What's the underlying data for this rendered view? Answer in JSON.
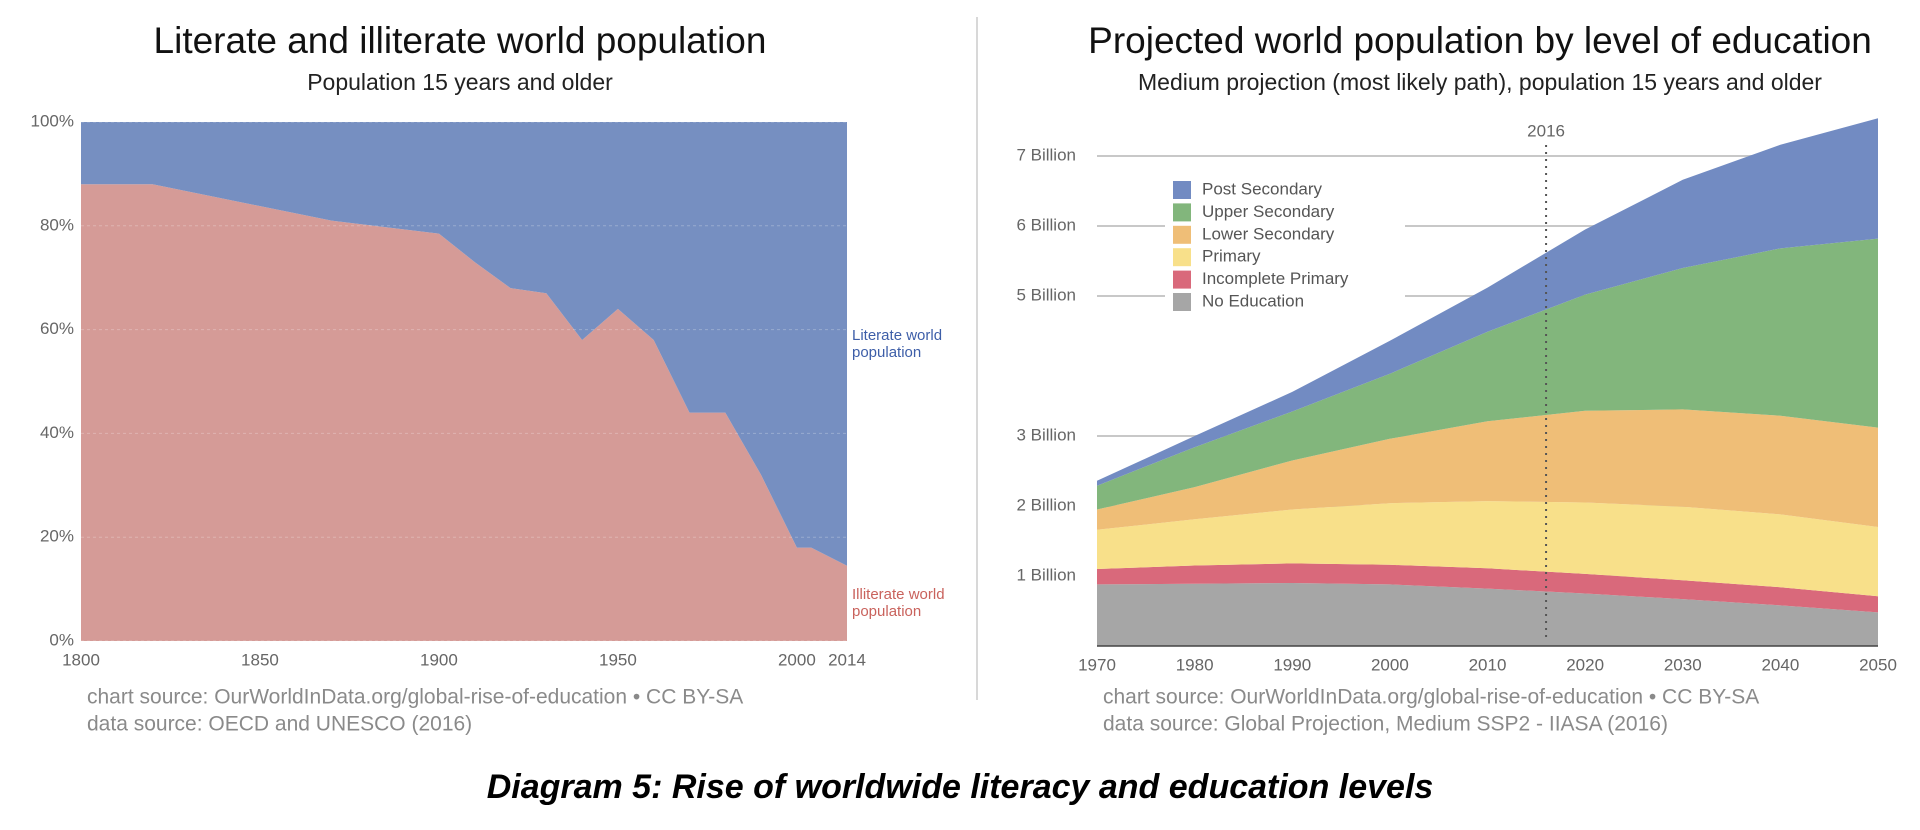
{
  "chart_data": [
    {
      "type": "area",
      "stacked": true,
      "title": "Literate and illiterate world population",
      "subtitle": "Population 15 years and older",
      "x": [
        1800,
        1820,
        1870,
        1900,
        1910,
        1920,
        1930,
        1940,
        1950,
        1960,
        1970,
        1980,
        1990,
        2000,
        2004,
        2014
      ],
      "series": [
        {
          "name": "Illiterate world population",
          "color": "#d59b97",
          "values": [
            88,
            88,
            81,
            78.5,
            73,
            68,
            67,
            58,
            64,
            58,
            44,
            44,
            32,
            18,
            18,
            14.5
          ]
        },
        {
          "name": "Literate world population",
          "color": "#768fc1",
          "values": [
            12,
            12,
            19,
            21.5,
            27,
            32,
            33,
            42,
            36,
            42,
            56,
            56,
            68,
            82,
            82,
            85.5
          ]
        }
      ],
      "xlim": [
        1800,
        2014
      ],
      "xticks": [
        1800,
        1850,
        1900,
        1950,
        2000,
        2014
      ],
      "ylim": [
        0,
        100
      ],
      "yticks": [
        {
          "value": 0,
          "label": "0%"
        },
        {
          "value": 20,
          "label": "20%"
        },
        {
          "value": 40,
          "label": "40%"
        },
        {
          "value": 60,
          "label": "60%"
        },
        {
          "value": 80,
          "label": "80%"
        },
        {
          "value": 100,
          "label": "100%"
        }
      ],
      "grid": true,
      "legend": "series labels right",
      "sources": [
        "chart source: OurWorldInData.org/global-rise-of-education • CC BY-SA",
        "data source: OECD and UNESCO (2016)"
      ]
    },
    {
      "type": "area",
      "stacked": true,
      "title": "Projected world population by level of education",
      "subtitle": "Medium projection (most likely path), population 15 years and older",
      "x": [
        1970,
        1980,
        1990,
        2000,
        2010,
        2020,
        2030,
        2040,
        2050
      ],
      "series": [
        {
          "name": "No Education",
          "color": "#a6a6a6",
          "values": [
            0.88,
            0.89,
            0.9,
            0.88,
            0.82,
            0.75,
            0.67,
            0.58,
            0.48
          ]
        },
        {
          "name": "Incomplete Primary",
          "color": "#d9697b",
          "values": [
            0.22,
            0.26,
            0.28,
            0.28,
            0.29,
            0.28,
            0.27,
            0.26,
            0.23
          ]
        },
        {
          "name": "Primary",
          "color": "#f8e08a",
          "values": [
            0.56,
            0.66,
            0.77,
            0.88,
            0.96,
            1.02,
            1.05,
            1.04,
            0.99
          ]
        },
        {
          "name": "Lower Secondary",
          "color": "#efbe77",
          "values": [
            0.29,
            0.46,
            0.7,
            0.92,
            1.14,
            1.31,
            1.39,
            1.41,
            1.42
          ]
        },
        {
          "name": "Upper Secondary",
          "color": "#82b67c",
          "values": [
            0.34,
            0.57,
            0.7,
            0.93,
            1.28,
            1.66,
            2.02,
            2.39,
            2.7
          ]
        },
        {
          "name": "Post Secondary",
          "color": "#728bc2",
          "values": [
            0.07,
            0.16,
            0.28,
            0.47,
            0.63,
            0.93,
            1.26,
            1.48,
            1.72
          ]
        }
      ],
      "xlim": [
        1970,
        2050
      ],
      "xticks": [
        1970,
        1980,
        1990,
        2000,
        2010,
        2020,
        2030,
        2040,
        2050
      ],
      "ylim": [
        0,
        7.6
      ],
      "yticks": [
        {
          "value": 1,
          "label": "1 Billion"
        },
        {
          "value": 2,
          "label": "2 Billion"
        },
        {
          "value": 3,
          "label": "3 Billion"
        },
        {
          "value": 5,
          "label": "5 Billion"
        },
        {
          "value": 6,
          "label": "6 Billion"
        },
        {
          "value": 7,
          "label": "7 Billion"
        }
      ],
      "grid": true,
      "legend": "upper left",
      "vline": 2016,
      "sources": [
        "chart source: OurWorldInData.org/global-rise-of-education • CC BY-SA",
        "data source: Global Projection, Medium SSP2 - IIASA (2016)"
      ]
    }
  ],
  "caption": "Diagram 5: Rise of worldwide literacy and education levels"
}
